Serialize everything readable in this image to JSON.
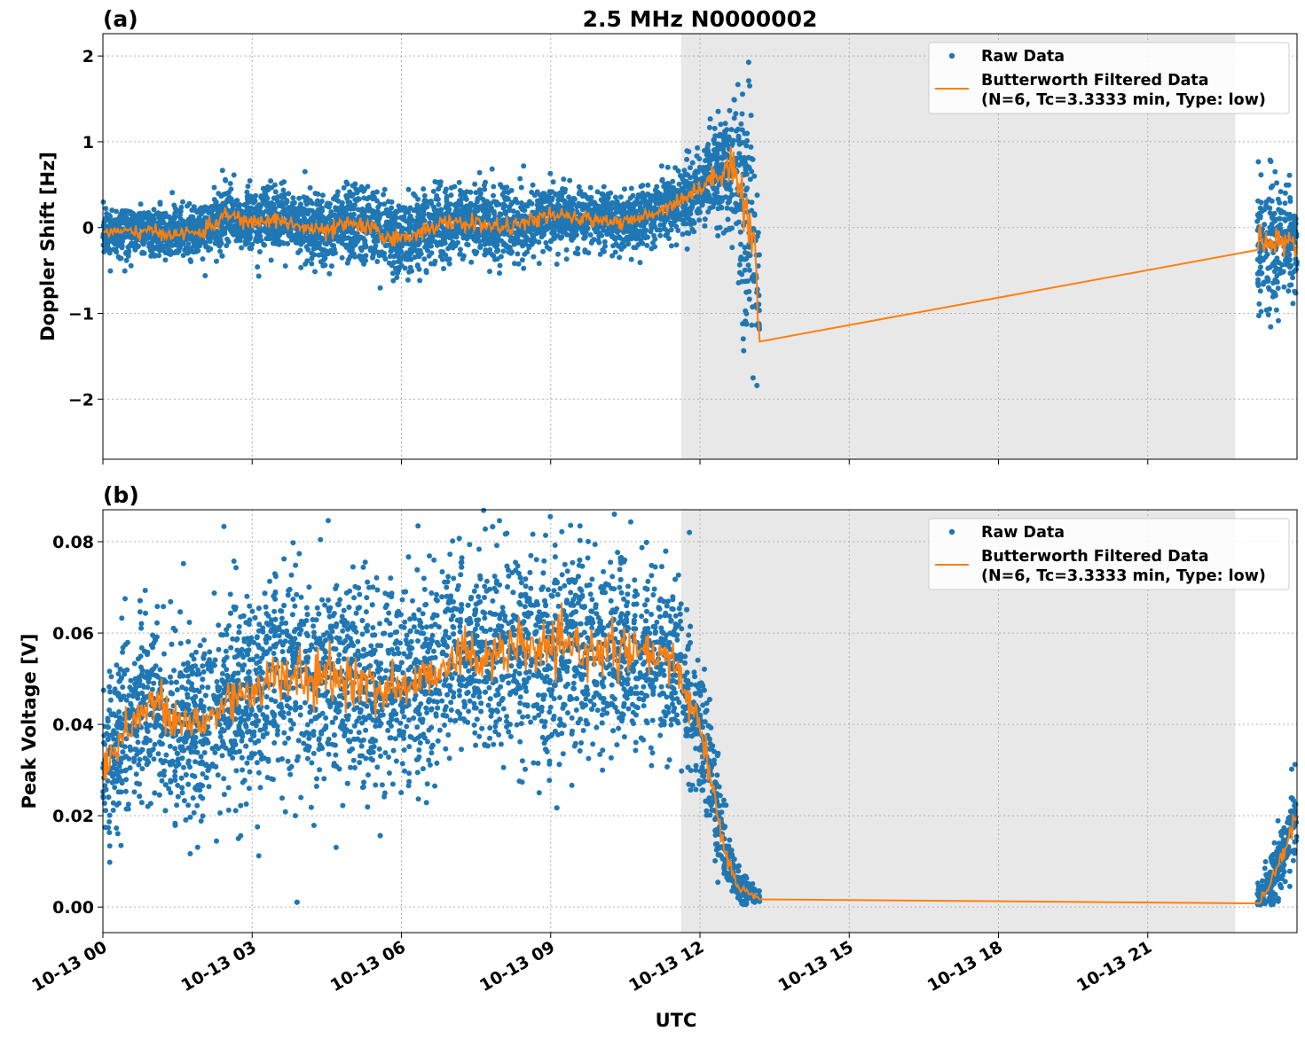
{
  "chart_data": [
    {
      "type": "scatter",
      "panel_label": "(a)",
      "title": "2.5 MHz N0000002",
      "xlabel": "",
      "ylabel": "Doppler Shift [Hz]",
      "xlim_hours": [
        0,
        24
      ],
      "ylim": [
        -2.7,
        2.26
      ],
      "yticks": [
        2,
        1,
        0,
        -1,
        -2
      ],
      "ytick_labels": [
        "2",
        "1",
        "0",
        "−1",
        "−2"
      ],
      "grid": true,
      "shaded_interval_hours": [
        11.62,
        22.76
      ],
      "legend_position": "top-right",
      "legend": [
        "Raw Data",
        "Butterworth Filtered Data",
        "(N=6, Tc=3.3333 min, Type: low)"
      ],
      "colors": {
        "raw": "#1f77b4",
        "filtered": "#ff7f0e",
        "shade": "#e8e8e8"
      },
      "segments": [
        [
          0,
          13.2
        ],
        [
          23.2,
          24
        ]
      ],
      "filtered": {
        "x": [
          0,
          0.5,
          1,
          1.5,
          2,
          2.5,
          3,
          3.5,
          4,
          4.5,
          5,
          5.5,
          6,
          6.5,
          7,
          7.5,
          8,
          8.5,
          9,
          9.5,
          10,
          10.5,
          11,
          11.5,
          12,
          12.5,
          12.7,
          12.9,
          13.1,
          13.2,
          23.2,
          23.5,
          24
        ],
        "y": [
          -0.05,
          -0.05,
          -0.05,
          -0.08,
          -0.05,
          0.15,
          0.05,
          0.1,
          0.0,
          -0.05,
          0.05,
          -0.05,
          -0.15,
          0.0,
          0.05,
          0.05,
          0.0,
          0.05,
          0.15,
          0.1,
          0.1,
          0.05,
          0.15,
          0.3,
          0.45,
          0.7,
          0.75,
          0.2,
          -0.2,
          -1.33,
          -0.23,
          -0.15,
          -0.2
        ]
      },
      "raw_spread": {
        "x": [
          0,
          2,
          5,
          6,
          9,
          11,
          12,
          12.5,
          12.8,
          13.0,
          13.2,
          23.2,
          24
        ],
        "y": [
          0.15,
          0.2,
          0.25,
          0.25,
          0.2,
          0.2,
          0.25,
          0.35,
          0.8,
          1.0,
          0.5,
          0.5,
          0.3
        ]
      }
    },
    {
      "type": "scatter",
      "panel_label": "(b)",
      "xlabel": "UTC",
      "ylabel": "Peak Voltage [V]",
      "xlim_hours": [
        0,
        24
      ],
      "ylim": [
        -0.0056,
        0.087
      ],
      "yticks": [
        0.08,
        0.06,
        0.04,
        0.02,
        0.0
      ],
      "ytick_labels": [
        "0.08",
        "0.06",
        "0.04",
        "0.02",
        "0.00"
      ],
      "xticks_hours": [
        0,
        3,
        6,
        9,
        12,
        15,
        18,
        21
      ],
      "xtick_labels": [
        "10-13 00",
        "10-13 03",
        "10-13 06",
        "10-13 09",
        "10-13 12",
        "10-13 15",
        "10-13 18",
        "10-13 21"
      ],
      "grid": true,
      "shaded_interval_hours": [
        11.62,
        22.76
      ],
      "legend_position": "top-right",
      "legend": [
        "Raw Data",
        "Butterworth Filtered Data",
        "(N=6, Tc=3.3333 min, Type: low)"
      ],
      "colors": {
        "raw": "#1f77b4",
        "filtered": "#ff7f0e",
        "shade": "#e8e8e8"
      },
      "segments": [
        [
          0,
          13.2
        ],
        [
          23.2,
          24
        ]
      ],
      "filtered": {
        "x": [
          0,
          0.5,
          1,
          1.5,
          2,
          2.5,
          3,
          3.5,
          4,
          4.5,
          5,
          5.5,
          6,
          6.5,
          7,
          7.5,
          8,
          8.5,
          9,
          9.5,
          10,
          10.5,
          11,
          11.5,
          12,
          12.5,
          12.8,
          13.2,
          23.2,
          23.5,
          24
        ],
        "y": [
          0.03,
          0.04,
          0.045,
          0.04,
          0.04,
          0.045,
          0.048,
          0.05,
          0.05,
          0.05,
          0.05,
          0.048,
          0.048,
          0.05,
          0.055,
          0.055,
          0.055,
          0.057,
          0.056,
          0.057,
          0.056,
          0.056,
          0.055,
          0.053,
          0.04,
          0.012,
          0.004,
          0.002,
          0.0008,
          0.006,
          0.02
        ]
      },
      "raw_spread": {
        "x": [
          0,
          3,
          11,
          11.8,
          12.3,
          12.7,
          13.2,
          23.2,
          24
        ],
        "y": [
          0.012,
          0.013,
          0.012,
          0.01,
          0.007,
          0.003,
          0.0008,
          0.002,
          0.006
        ]
      }
    }
  ]
}
